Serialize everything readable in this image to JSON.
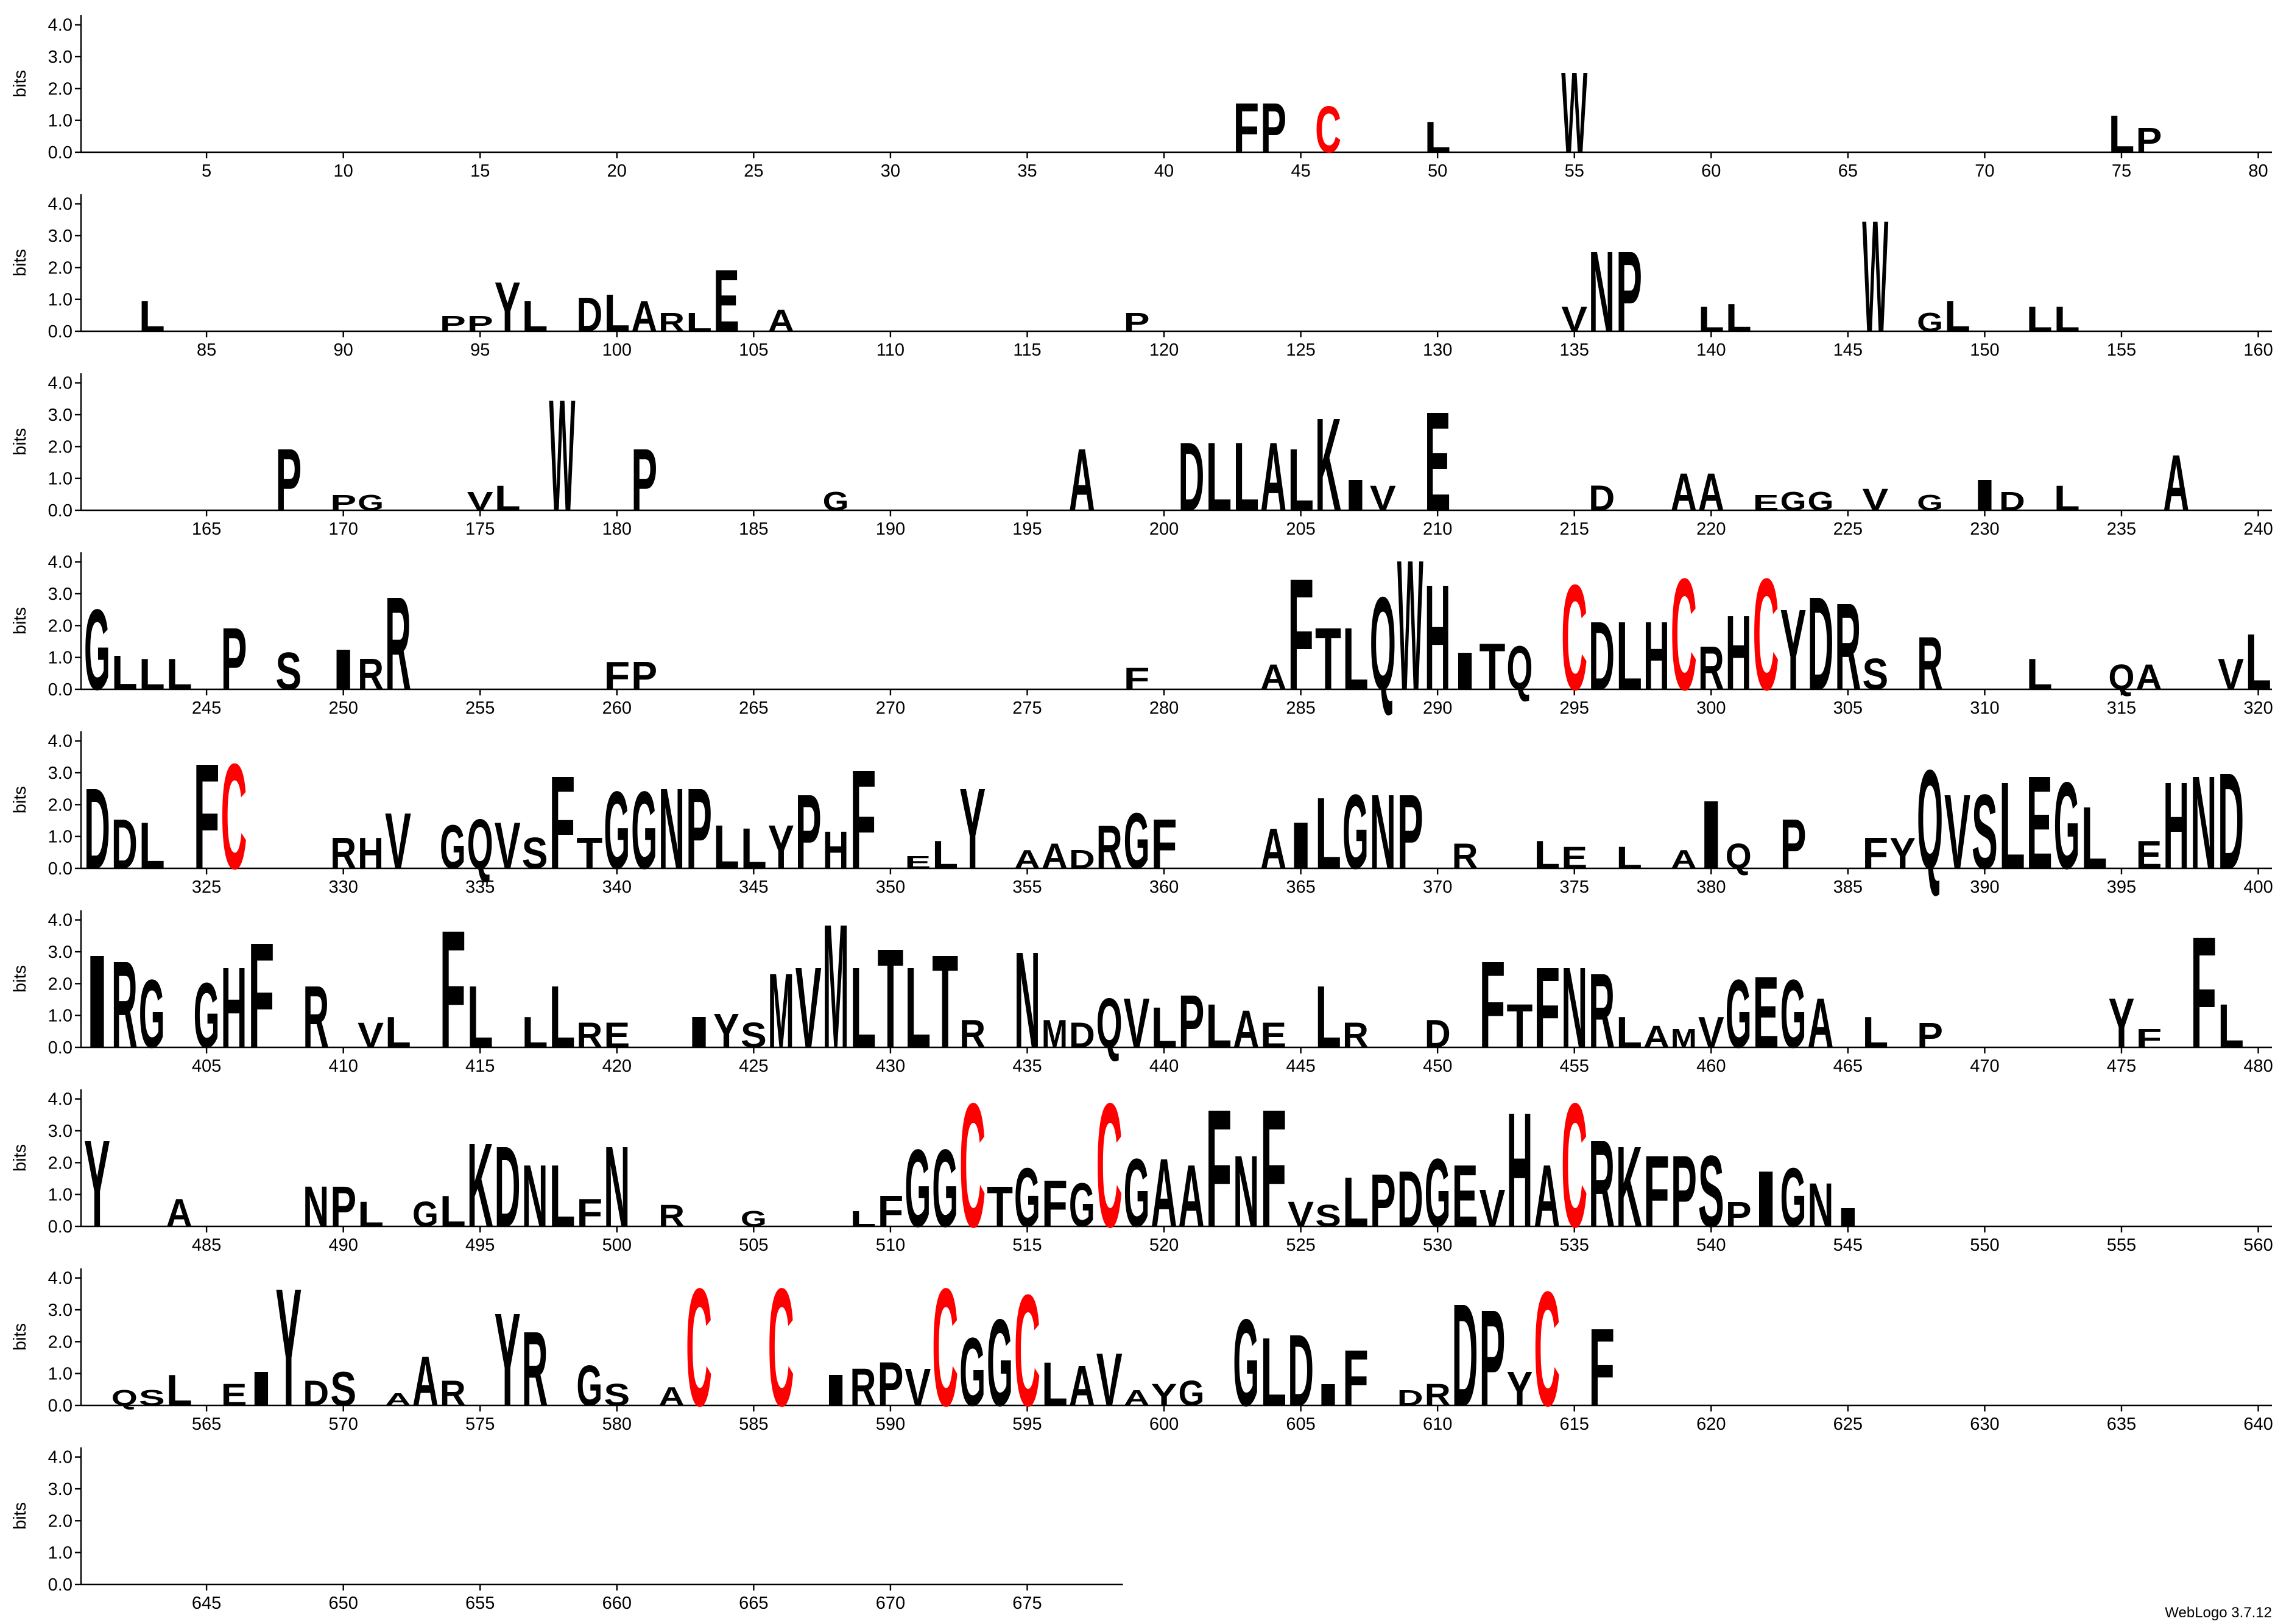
{
  "chart_data": {
    "type": "logo",
    "ylabel": "bits",
    "footer": "WebLogo 3.7.12",
    "ylim": [
      0,
      4.3
    ],
    "yticks": [
      {
        "value": 0,
        "label": "0.0"
      },
      {
        "value": 1,
        "label": "1.0"
      },
      {
        "value": 2,
        "label": "2.0"
      },
      {
        "value": 3,
        "label": "3.0"
      },
      {
        "value": 4,
        "label": "4.0"
      }
    ],
    "xlim": [
      1,
      678
    ],
    "xticks": [
      5,
      10,
      15,
      20,
      25,
      30,
      35,
      40,
      45,
      50,
      55,
      60,
      65,
      70,
      75,
      80,
      85,
      90,
      95,
      100,
      105,
      110,
      115,
      120,
      125,
      130,
      135,
      140,
      145,
      150,
      155,
      160,
      165,
      170,
      175,
      180,
      185,
      190,
      195,
      200,
      205,
      210,
      215,
      220,
      225,
      230,
      235,
      240,
      245,
      250,
      255,
      260,
      265,
      270,
      275,
      280,
      285,
      290,
      295,
      300,
      305,
      310,
      315,
      320,
      325,
      330,
      335,
      340,
      345,
      350,
      355,
      360,
      365,
      370,
      375,
      380,
      385,
      390,
      395,
      400,
      405,
      410,
      415,
      420,
      425,
      430,
      435,
      440,
      445,
      450,
      455,
      460,
      465,
      470,
      475,
      480,
      485,
      490,
      495,
      500,
      505,
      510,
      515,
      520,
      525,
      530,
      535,
      540,
      545,
      550,
      555,
      560,
      565,
      570,
      575,
      580,
      585,
      590,
      595,
      600,
      605,
      610,
      615,
      620,
      625,
      630,
      635,
      640,
      645,
      650,
      655,
      660,
      665,
      670,
      675
    ],
    "letter_color": "#000000",
    "highlight": {
      "C": "#ff0000"
    },
    "stacks": [
      [
        43,
        "F",
        1.6
      ],
      [
        44,
        "P",
        1.6
      ],
      [
        46,
        "C",
        1.5
      ],
      [
        50,
        "L",
        1.0
      ],
      [
        55,
        "W",
        2.6
      ],
      [
        75,
        "L",
        1.2
      ],
      [
        76,
        "P",
        0.8
      ],
      [
        83,
        "L",
        1.0
      ],
      [
        94,
        "P",
        0.5
      ],
      [
        95,
        "P",
        0.5
      ],
      [
        96,
        "Y",
        1.6
      ],
      [
        97,
        "L",
        1.0
      ],
      [
        99,
        "D",
        1.1
      ],
      [
        100,
        "L",
        1.2
      ],
      [
        101,
        "A",
        1.0
      ],
      [
        102,
        "R",
        0.6
      ],
      [
        103,
        "L",
        0.6
      ],
      [
        104,
        "E",
        2.0
      ],
      [
        106,
        "A",
        0.7
      ],
      [
        119,
        "P",
        0.6
      ],
      [
        135,
        "V",
        0.8
      ],
      [
        136,
        "N",
        2.6
      ],
      [
        137,
        "P",
        2.6
      ],
      [
        140,
        "L",
        0.8
      ],
      [
        141,
        "L",
        0.9
      ],
      [
        146,
        "W",
        3.6
      ],
      [
        148,
        "G",
        0.6
      ],
      [
        149,
        "L",
        1.0
      ],
      [
        152,
        "L",
        0.8
      ],
      [
        153,
        "L",
        0.8
      ],
      [
        168,
        "P",
        2.0
      ],
      [
        170,
        "P",
        0.5
      ],
      [
        171,
        "G",
        0.5
      ],
      [
        175,
        "V",
        0.6
      ],
      [
        176,
        "L",
        0.8
      ],
      [
        178,
        "W",
        3.6
      ],
      [
        181,
        "P",
        2.0
      ],
      [
        188,
        "G",
        0.6
      ],
      [
        197,
        "A",
        2.0
      ],
      [
        201,
        "D",
        2.2
      ],
      [
        202,
        "L",
        2.2
      ],
      [
        203,
        "L",
        2.2
      ],
      [
        204,
        "A",
        2.2
      ],
      [
        205,
        "L",
        2.0
      ],
      [
        206,
        "K",
        3.0
      ],
      [
        207,
        "I",
        1.0
      ],
      [
        208,
        "V",
        0.8
      ],
      [
        210,
        "E",
        3.2
      ],
      [
        216,
        "D",
        0.8
      ],
      [
        219,
        "A",
        1.2
      ],
      [
        220,
        "A",
        1.2
      ],
      [
        222,
        "E",
        0.5
      ],
      [
        223,
        "G",
        0.6
      ],
      [
        224,
        "G",
        0.6
      ],
      [
        226,
        "V",
        0.7
      ],
      [
        228,
        "G",
        0.5
      ],
      [
        230,
        "I",
        1.0
      ],
      [
        231,
        "D",
        0.6
      ],
      [
        233,
        "L",
        0.8
      ],
      [
        237,
        "A",
        1.8
      ],
      [
        241,
        "G",
        2.6
      ],
      [
        242,
        "L",
        1.1
      ],
      [
        243,
        "L",
        1.0
      ],
      [
        244,
        "L",
        1.0
      ],
      [
        246,
        "P",
        2.0
      ],
      [
        248,
        "S",
        1.2
      ],
      [
        250,
        "I",
        1.3
      ],
      [
        251,
        "R",
        1.0
      ],
      [
        252,
        "R",
        3.0
      ],
      [
        260,
        "F",
        0.9
      ],
      [
        261,
        "P",
        0.9
      ],
      [
        279,
        "F",
        0.7
      ],
      [
        284,
        "A",
        0.8
      ],
      [
        285,
        "F",
        3.6
      ],
      [
        286,
        "T",
        2.0
      ],
      [
        287,
        "L",
        2.0
      ],
      [
        288,
        "Q",
        3.0
      ],
      [
        289,
        "W",
        4.2
      ],
      [
        290,
        "H",
        3.4
      ],
      [
        291,
        "I",
        1.2
      ],
      [
        292,
        "T",
        1.5
      ],
      [
        293,
        "Q",
        1.4
      ],
      [
        295,
        "C",
        3.4
      ],
      [
        296,
        "D",
        2.2
      ],
      [
        297,
        "L",
        2.2
      ],
      [
        298,
        "H",
        2.2
      ],
      [
        299,
        "C",
        3.6
      ],
      [
        300,
        "R",
        1.4
      ],
      [
        301,
        "H",
        2.4
      ],
      [
        302,
        "C",
        3.6
      ],
      [
        303,
        "Y",
        2.6
      ],
      [
        304,
        "D",
        3.0
      ],
      [
        305,
        "R",
        2.8
      ],
      [
        306,
        "S",
        1.0
      ],
      [
        308,
        "R",
        1.7
      ],
      [
        312,
        "L",
        1.0
      ],
      [
        315,
        "Q",
        0.8
      ],
      [
        316,
        "A",
        0.8
      ],
      [
        319,
        "V",
        1.0
      ],
      [
        320,
        "L",
        1.8
      ],
      [
        321,
        "D",
        2.6
      ],
      [
        322,
        "D",
        1.6
      ],
      [
        323,
        "L",
        1.5
      ],
      [
        325,
        "F",
        3.4
      ],
      [
        326,
        "C",
        3.4
      ],
      [
        330,
        "R",
        1.0
      ],
      [
        331,
        "H",
        1.0
      ],
      [
        332,
        "V",
        1.8
      ],
      [
        334,
        "G",
        1.4
      ],
      [
        335,
        "Q",
        1.6
      ],
      [
        336,
        "V",
        1.5
      ],
      [
        337,
        "S",
        1.0
      ],
      [
        338,
        "F",
        3.0
      ],
      [
        339,
        "T",
        1.0
      ],
      [
        340,
        "G",
        2.5
      ],
      [
        341,
        "G",
        2.5
      ],
      [
        342,
        "N",
        2.6
      ],
      [
        343,
        "P",
        2.6
      ],
      [
        344,
        "L",
        1.4
      ],
      [
        345,
        "L",
        1.3
      ],
      [
        346,
        "Y",
        1.4
      ],
      [
        347,
        "P",
        2.4
      ],
      [
        348,
        "H",
        1.2
      ],
      [
        349,
        "F",
        3.2
      ],
      [
        351,
        "E",
        0.4
      ],
      [
        352,
        "L",
        0.9
      ],
      [
        353,
        "Y",
        2.6
      ],
      [
        355,
        "A",
        0.6
      ],
      [
        356,
        "A",
        0.8
      ],
      [
        357,
        "D",
        0.6
      ],
      [
        358,
        "R",
        1.4
      ],
      [
        359,
        "G",
        1.8
      ],
      [
        360,
        "F",
        1.6
      ],
      [
        364,
        "A",
        1.3
      ],
      [
        365,
        "I",
        1.5
      ],
      [
        366,
        "L",
        2.3
      ],
      [
        367,
        "G",
        2.4
      ],
      [
        368,
        "N",
        2.4
      ],
      [
        369,
        "P",
        2.4
      ],
      [
        371,
        "R",
        0.8
      ],
      [
        374,
        "L",
        0.9
      ],
      [
        375,
        "E",
        0.7
      ],
      [
        377,
        "L",
        0.7
      ],
      [
        379,
        "A",
        0.6
      ],
      [
        380,
        "I",
        2.2
      ],
      [
        381,
        "Q",
        0.8
      ],
      [
        383,
        "P",
        1.6
      ],
      [
        386,
        "F",
        1.0
      ],
      [
        387,
        "Y",
        1.0
      ],
      [
        388,
        "Q",
        3.2
      ],
      [
        389,
        "V",
        2.4
      ],
      [
        390,
        "S",
        2.4
      ],
      [
        391,
        "L",
        2.8
      ],
      [
        392,
        "E",
        3.0
      ],
      [
        393,
        "G",
        2.8
      ],
      [
        394,
        "L",
        2.0
      ],
      [
        396,
        "E",
        0.9
      ],
      [
        397,
        "H",
        2.8
      ],
      [
        398,
        "N",
        3.0
      ],
      [
        399,
        "D",
        3.1
      ],
      [
        401,
        "I",
        3.0
      ],
      [
        402,
        "R",
        2.8
      ],
      [
        403,
        "G",
        2.2
      ],
      [
        405,
        "G",
        2.1
      ],
      [
        406,
        "H",
        2.6
      ],
      [
        407,
        "F",
        3.4
      ],
      [
        409,
        "R",
        2.0
      ],
      [
        411,
        "V",
        0.8
      ],
      [
        412,
        "L",
        1.0
      ],
      [
        414,
        "F",
        3.8
      ],
      [
        415,
        "L",
        2.0
      ],
      [
        417,
        "L",
        1.0
      ],
      [
        418,
        "L",
        2.0
      ],
      [
        419,
        "R",
        0.8
      ],
      [
        420,
        "E",
        0.8
      ],
      [
        423,
        "I",
        1.0
      ],
      [
        424,
        "Y",
        1.1
      ],
      [
        425,
        "S",
        0.8
      ],
      [
        426,
        "M",
        2.4
      ],
      [
        427,
        "V",
        2.6
      ],
      [
        428,
        "M",
        4.0
      ],
      [
        429,
        "L",
        2.6
      ],
      [
        430,
        "T",
        3.2
      ],
      [
        431,
        "L",
        2.6
      ],
      [
        432,
        "T",
        3.0
      ],
      [
        433,
        "R",
        0.9
      ],
      [
        435,
        "N",
        3.1
      ],
      [
        436,
        "M",
        0.9
      ],
      [
        437,
        "D",
        0.8
      ],
      [
        438,
        "Q",
        1.6
      ],
      [
        439,
        "V",
        1.6
      ],
      [
        440,
        "L",
        1.3
      ],
      [
        441,
        "P",
        1.7
      ],
      [
        442,
        "L",
        1.4
      ],
      [
        443,
        "A",
        1.2
      ],
      [
        444,
        "E",
        0.8
      ],
      [
        446,
        "L",
        2.0
      ],
      [
        447,
        "R",
        0.8
      ],
      [
        450,
        "D",
        0.9
      ],
      [
        452,
        "F",
        2.8
      ],
      [
        453,
        "T",
        1.4
      ],
      [
        454,
        "F",
        2.6
      ],
      [
        455,
        "N",
        2.6
      ],
      [
        456,
        "R",
        2.4
      ],
      [
        457,
        "L",
        1.0
      ],
      [
        458,
        "A",
        0.7
      ],
      [
        459,
        "M",
        0.6
      ],
      [
        460,
        "V",
        1.0
      ],
      [
        461,
        "G",
        2.2
      ],
      [
        462,
        "E",
        2.3
      ],
      [
        463,
        "G",
        2.2
      ],
      [
        464,
        "A",
        1.6
      ],
      [
        466,
        "L",
        1.0
      ],
      [
        468,
        "P",
        0.8
      ],
      [
        475,
        "Y",
        1.6
      ],
      [
        476,
        "F",
        0.6
      ],
      [
        478,
        "F",
        3.6
      ],
      [
        479,
        "L",
        1.4
      ],
      [
        481,
        "Y",
        2.8
      ],
      [
        484,
        "A",
        0.9
      ],
      [
        489,
        "N",
        1.3
      ],
      [
        490,
        "P",
        1.3
      ],
      [
        491,
        "L",
        0.8
      ],
      [
        493,
        "G",
        0.8
      ],
      [
        494,
        "L",
        1.0
      ],
      [
        495,
        "K",
        2.7
      ],
      [
        496,
        "D",
        2.6
      ],
      [
        497,
        "N",
        2.0
      ],
      [
        498,
        "L",
        2.0
      ],
      [
        499,
        "F",
        0.9
      ],
      [
        500,
        "N",
        2.6
      ],
      [
        502,
        "R",
        0.7
      ],
      [
        505,
        "G",
        0.5
      ],
      [
        509,
        "L",
        0.5
      ],
      [
        510,
        "F",
        1.0
      ],
      [
        511,
        "G",
        2.5
      ],
      [
        512,
        "G",
        2.5
      ],
      [
        513,
        "C",
        4.0
      ],
      [
        514,
        "T",
        1.3
      ],
      [
        515,
        "G",
        1.9
      ],
      [
        516,
        "F",
        1.5
      ],
      [
        517,
        "G",
        1.4
      ],
      [
        518,
        "C",
        4.0
      ],
      [
        519,
        "G",
        2.2
      ],
      [
        520,
        "A",
        2.2
      ],
      [
        521,
        "A",
        2.0
      ],
      [
        522,
        "F",
        3.8
      ],
      [
        523,
        "N",
        2.3
      ],
      [
        524,
        "F",
        3.8
      ],
      [
        525,
        "V",
        0.8
      ],
      [
        526,
        "S",
        0.7
      ],
      [
        527,
        "L",
        1.6
      ],
      [
        528,
        "P",
        1.7
      ],
      [
        529,
        "D",
        1.8
      ],
      [
        530,
        "G",
        2.2
      ],
      [
        531,
        "E",
        2.0
      ],
      [
        532,
        "V",
        1.2
      ],
      [
        533,
        "H",
        3.7
      ],
      [
        534,
        "A",
        2.0
      ],
      [
        535,
        "C",
        4.0
      ],
      [
        536,
        "R",
        2.8
      ],
      [
        537,
        "K",
        2.6
      ],
      [
        538,
        "F",
        2.3
      ],
      [
        539,
        "P",
        2.3
      ],
      [
        540,
        "S",
        2.3
      ],
      [
        541,
        "P",
        0.8
      ],
      [
        542,
        "I",
        1.8
      ],
      [
        543,
        "G",
        1.9
      ],
      [
        544,
        "N",
        1.4
      ],
      [
        545,
        "I",
        0.6
      ],
      [
        562,
        "Q",
        0.5
      ],
      [
        563,
        "S",
        0.5
      ],
      [
        564,
        "L",
        1.0
      ],
      [
        566,
        "E",
        0.7
      ],
      [
        567,
        "I",
        1.1
      ],
      [
        568,
        "Y",
        3.8
      ],
      [
        569,
        "D",
        0.8
      ],
      [
        570,
        "S",
        1.1
      ],
      [
        572,
        "A",
        0.4
      ],
      [
        573,
        "A",
        1.6
      ],
      [
        574,
        "R",
        0.8
      ],
      [
        576,
        "Y",
        3.0
      ],
      [
        577,
        "R",
        2.4
      ],
      [
        579,
        "G",
        1.3
      ],
      [
        580,
        "S",
        0.7
      ],
      [
        582,
        "A",
        0.6
      ],
      [
        583,
        "C",
        3.8
      ],
      [
        586,
        "C",
        3.8
      ],
      [
        588,
        "I",
        1.0
      ],
      [
        589,
        "R",
        1.2
      ],
      [
        590,
        "P",
        1.4
      ],
      [
        591,
        "V",
        1.2
      ],
      [
        592,
        "C",
        3.8
      ],
      [
        593,
        "G",
        2.2
      ],
      [
        594,
        "G",
        2.8
      ],
      [
        595,
        "C",
        3.6
      ],
      [
        596,
        "L",
        1.4
      ],
      [
        597,
        "A",
        1.3
      ],
      [
        598,
        "V",
        1.7
      ],
      [
        599,
        "A",
        0.5
      ],
      [
        600,
        "Y",
        0.7
      ],
      [
        601,
        "G",
        0.8
      ],
      [
        603,
        "G",
        2.8
      ],
      [
        604,
        "L",
        2.2
      ],
      [
        605,
        "D",
        2.3
      ],
      [
        606,
        "I",
        0.7
      ],
      [
        607,
        "F",
        1.8
      ],
      [
        609,
        "D",
        0.5
      ],
      [
        610,
        "R",
        0.7
      ],
      [
        611,
        "D",
        3.3
      ],
      [
        612,
        "P",
        3.1
      ],
      [
        613,
        "Y",
        1.1
      ],
      [
        614,
        "C",
        3.7
      ],
      [
        616,
        "F",
        2.5
      ]
    ]
  }
}
